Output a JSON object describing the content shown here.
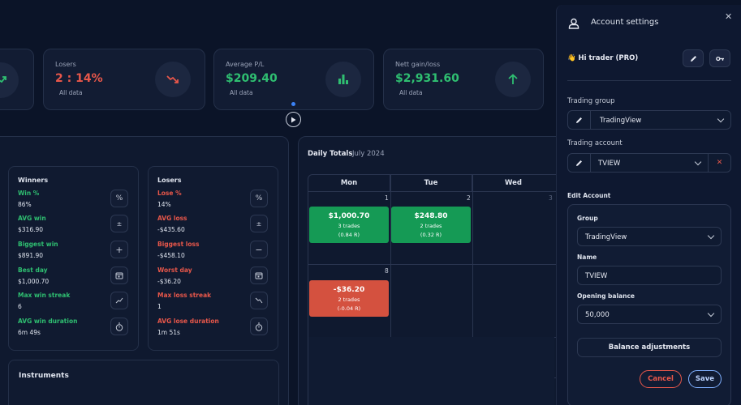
{
  "stats": [
    {
      "label": "Losers",
      "value": "2 : 14%",
      "sub": "All data",
      "color": "#e8574a",
      "icon": "trend-down-icon"
    },
    {
      "label": "Average P/L",
      "value": "$209.40",
      "sub": "All data",
      "color": "#2fbf71",
      "icon": "bar-chart-icon"
    },
    {
      "label": "Nett gain/loss",
      "value": "$2,931.60",
      "sub": "All data",
      "color": "#2fbf71",
      "icon": "arrow-up-icon"
    }
  ],
  "winners": {
    "title": "Winners",
    "rows": [
      {
        "name": "Win %",
        "value": "86%",
        "icon": "percent-icon"
      },
      {
        "name": "AVG win",
        "value": "$316.90",
        "icon": "plus-minus-icon"
      },
      {
        "name": "Biggest win",
        "value": "$891.90",
        "icon": "plus-icon"
      },
      {
        "name": "Best day",
        "value": "$1,000.70",
        "icon": "calendar-icon"
      },
      {
        "name": "Max win streak",
        "value": "6",
        "icon": "trend-up-icon"
      },
      {
        "name": "AVG win duration",
        "value": "6m 49s",
        "icon": "stopwatch-icon"
      }
    ]
  },
  "losers": {
    "title": "Losers",
    "rows": [
      {
        "name": "Lose %",
        "value": "14%",
        "icon": "percent-icon"
      },
      {
        "name": "AVG loss",
        "value": "-$435.60",
        "icon": "plus-minus-icon"
      },
      {
        "name": "Biggest loss",
        "value": "-$458.10",
        "icon": "minus-icon"
      },
      {
        "name": "Worst day",
        "value": "-$36.20",
        "icon": "calendar-icon"
      },
      {
        "name": "Max loss streak",
        "value": "1",
        "icon": "trend-down-icon"
      },
      {
        "name": "AVG lose duration",
        "value": "1m 51s",
        "icon": "stopwatch-icon"
      }
    ]
  },
  "instruments": {
    "title": "Instruments"
  },
  "calendar": {
    "title": "Daily Totals",
    "month": "July 2024",
    "days": [
      "Mon",
      "Tue",
      "Wed"
    ],
    "cells": [
      {
        "day": "1",
        "value": "$1,000.70",
        "trades": "3 trades",
        "r": "(0.84 R)",
        "color": "#159a55"
      },
      {
        "day": "2",
        "value": "$248.80",
        "trades": "2 trades",
        "r": "(0.32 R)",
        "color": "#159a55"
      },
      {
        "day": "3"
      },
      {
        "day": "8",
        "value": "-$36.20",
        "trades": "2 trades",
        "r": "(-0.04 R)",
        "color": "#d4513f"
      }
    ]
  },
  "settings": {
    "title": "Account settings",
    "greeting": "👋 Hi trader (PRO)",
    "trading_group_label": "Trading group",
    "trading_group_value": "TradingView",
    "trading_account_label": "Trading account",
    "trading_account_value": "TVIEW",
    "edit_account_label": "Edit Account",
    "group_label": "Group",
    "group_value": "TradingView",
    "name_label": "Name",
    "name_value": "TVIEW",
    "opening_balance_label": "Opening balance",
    "opening_balance_value": "50,000",
    "balance_adjustments": "Balance adjustments",
    "cancel": "Cancel",
    "save": "Save"
  }
}
